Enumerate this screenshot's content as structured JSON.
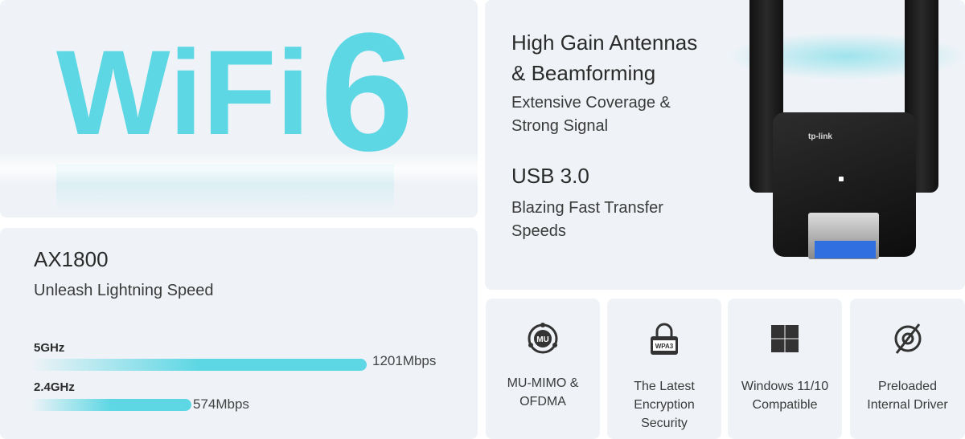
{
  "hero": {
    "wifi": "WiFi",
    "six": "6"
  },
  "speed": {
    "title": "AX1800",
    "subtitle": "Unleash Lightning Speed",
    "bands": [
      {
        "label": "5GHz",
        "value": "1201Mbps",
        "mbps": 1201
      },
      {
        "label": "2.4GHz",
        "value": "574Mbps",
        "mbps": 574
      }
    ]
  },
  "antennas": {
    "title_line1": "High Gain Antennas",
    "title_line2": "& Beamforming",
    "sub_line1": "Extensive Coverage &",
    "sub_line2": "Strong Signal",
    "usb_title": "USB 3.0",
    "usb_sub_line1": "Blazing Fast Transfer",
    "usb_sub_line2": "Speeds",
    "brand_logo": "tp-link"
  },
  "features": [
    {
      "icon": "mu-mimo-icon",
      "line1": "MU-MIMO &",
      "line2": "OFDMA",
      "badge": "MU"
    },
    {
      "icon": "wpa3-lock-icon",
      "line1": "The Latest",
      "line2": "Encryption",
      "line3": "Security",
      "badge": "WPA3"
    },
    {
      "icon": "windows-icon",
      "line1": "Windows 11/10",
      "line2": "Compatible"
    },
    {
      "icon": "no-cd-icon",
      "line1": "Preloaded",
      "line2": "Internal Driver"
    }
  ],
  "colors": {
    "accent": "#5dd7e4",
    "panel": "#eff3f7",
    "icon": "#333333"
  }
}
